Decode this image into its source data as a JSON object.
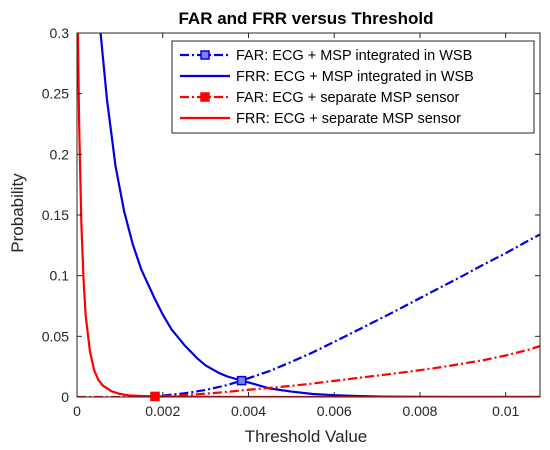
{
  "chart_data": {
    "type": "line",
    "title": "FAR and FRR versus Threshold",
    "xlabel": "Threshold Value",
    "ylabel": "Probability",
    "xlim": [
      0,
      0.0108
    ],
    "ylim": [
      0,
      0.3
    ],
    "xticks": [
      0,
      0.002,
      0.004,
      0.006,
      0.008,
      0.01
    ],
    "xtick_labels": [
      "0",
      "0.002",
      "0.004",
      "0.006",
      "0.008",
      "0.01"
    ],
    "yticks": [
      0,
      0.05,
      0.1,
      0.15,
      0.2,
      0.25,
      0.3
    ],
    "ytick_labels": [
      "0",
      "0.05",
      "0.1",
      "0.15",
      "0.2",
      "0.25",
      "0.3"
    ],
    "grid": false,
    "legend_position": "top-right",
    "series": [
      {
        "name": "FAR: ECG + MSP integrated in WSB",
        "color": "#0000e0",
        "style": "dash-dot",
        "x": [
          0.0016,
          0.002,
          0.0025,
          0.003,
          0.0035,
          0.00384,
          0.0045,
          0.005,
          0.0055,
          0.006,
          0.0065,
          0.007,
          0.0075,
          0.008,
          0.0085,
          0.009,
          0.0095,
          0.01,
          0.0105,
          0.0108
        ],
        "y": [
          0.0,
          0.0012,
          0.003,
          0.0058,
          0.0098,
          0.0135,
          0.0215,
          0.0289,
          0.0368,
          0.0455,
          0.0543,
          0.0632,
          0.0722,
          0.0815,
          0.0907,
          0.0999,
          0.1095,
          0.1185,
          0.1283,
          0.134
        ]
      },
      {
        "name": "FRR: ECG + MSP integrated in WSB",
        "color": "#0000e0",
        "style": "solid",
        "x": [
          0.00055,
          0.0007,
          0.0009,
          0.0011,
          0.0013,
          0.0015,
          0.0018,
          0.002,
          0.0022,
          0.0025,
          0.0028,
          0.003,
          0.0033,
          0.0035,
          0.00384,
          0.004,
          0.0045,
          0.005,
          0.0055,
          0.006,
          0.0065,
          0.007,
          0.0075,
          0.008,
          0.009,
          0.01,
          0.0108
        ],
        "y": [
          0.3,
          0.245,
          0.19,
          0.153,
          0.126,
          0.105,
          0.082,
          0.068,
          0.056,
          0.043,
          0.032,
          0.026,
          0.02,
          0.017,
          0.0135,
          0.012,
          0.007,
          0.0045,
          0.0025,
          0.0015,
          0.0008,
          0.0004,
          0.0002,
          0.0001,
          0.0,
          0.0,
          0.0
        ]
      },
      {
        "name": "FAR: ECG + separate MSP sensor",
        "color": "#ff0000",
        "style": "dash-dot",
        "x": [
          0.0,
          0.0005,
          0.001,
          0.0015,
          0.00182,
          0.0025,
          0.003,
          0.0035,
          0.004,
          0.0045,
          0.005,
          0.0055,
          0.006,
          0.0065,
          0.007,
          0.0075,
          0.008,
          0.0085,
          0.009,
          0.0095,
          0.01,
          0.0105,
          0.0108
        ],
        "y": [
          0.0,
          0.0,
          0.0,
          0.0002,
          0.0005,
          0.0016,
          0.0027,
          0.0042,
          0.006,
          0.0075,
          0.0092,
          0.0111,
          0.0133,
          0.0155,
          0.0176,
          0.0198,
          0.0221,
          0.0246,
          0.0275,
          0.0305,
          0.0342,
          0.0387,
          0.042
        ]
      },
      {
        "name": "FRR: ECG + separate MSP sensor",
        "color": "#ff0000",
        "style": "solid",
        "x": [
          2e-05,
          5e-05,
          0.0001,
          0.00015,
          0.0002,
          0.0003,
          0.0004,
          0.0005,
          0.0006,
          0.0008,
          0.001,
          0.0012,
          0.0015,
          0.00182,
          0.0025,
          0.003,
          0.004,
          0.005,
          0.006,
          0.008,
          0.01,
          0.0108
        ],
        "y": [
          0.3,
          0.225,
          0.145,
          0.099,
          0.068,
          0.038,
          0.022,
          0.014,
          0.0095,
          0.0048,
          0.0025,
          0.0014,
          0.0008,
          0.0005,
          0.0002,
          0.0001,
          0.0,
          0.0,
          0.0,
          0.0,
          0.0,
          0.0
        ]
      }
    ],
    "markers": [
      {
        "series": 0,
        "x": 0.00384,
        "y": 0.0135
      },
      {
        "series": 2,
        "x": 0.00182,
        "y": 0.0005
      }
    ]
  }
}
